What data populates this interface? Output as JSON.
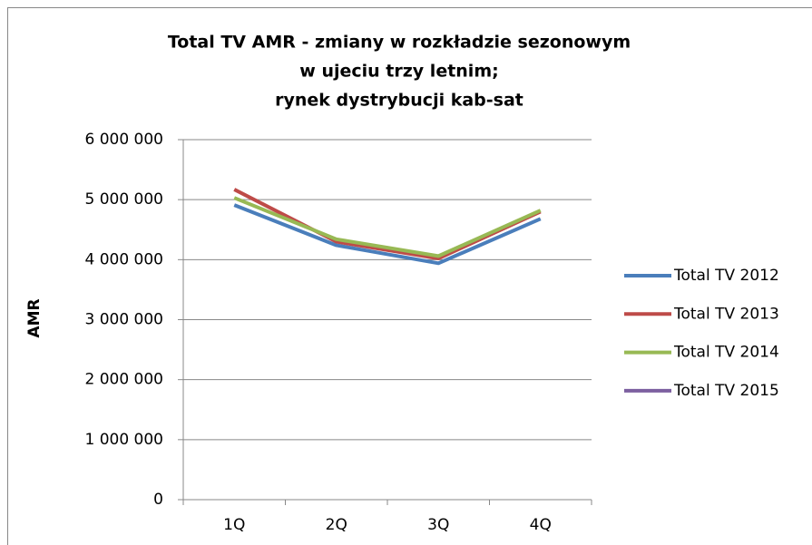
{
  "chart_data": {
    "type": "line",
    "title": [
      "Total TV AMR - zmiany w rozkładzie sezonowym",
      "w ujeciu trzy letnim;",
      "rynek dystrybucji kab-sat"
    ],
    "y_label": "AMR",
    "categories": [
      "1Q",
      "2Q",
      "3Q",
      "4Q"
    ],
    "series": [
      {
        "name": "Total TV 2012",
        "color": "#4a7ebb",
        "values": [
          4910000,
          4240000,
          3940000,
          4680000
        ]
      },
      {
        "name": "Total TV 2013",
        "color": "#be4b48",
        "values": [
          5170000,
          4300000,
          4020000,
          4800000
        ]
      },
      {
        "name": "Total TV 2014",
        "color": "#98b954",
        "values": [
          5030000,
          4340000,
          4060000,
          4820000
        ]
      },
      {
        "name": "Total TV 2015",
        "color": "#7d60a0",
        "values": [
          null,
          null,
          null,
          null
        ]
      }
    ],
    "ylim": [
      0,
      6000000
    ],
    "yticks": [
      0,
      {
        "value": 1000000,
        "label": "1 000 000"
      },
      {
        "value": 2000000,
        "label": "2 000 000"
      },
      {
        "value": 3000000,
        "label": "3 000 000"
      },
      {
        "value": 4000000,
        "label": "4 000 000"
      },
      {
        "value": 5000000,
        "label": "5 000 000"
      },
      {
        "value": 6000000,
        "label": "6 000 000"
      }
    ],
    "grid": true,
    "legend": "right"
  }
}
